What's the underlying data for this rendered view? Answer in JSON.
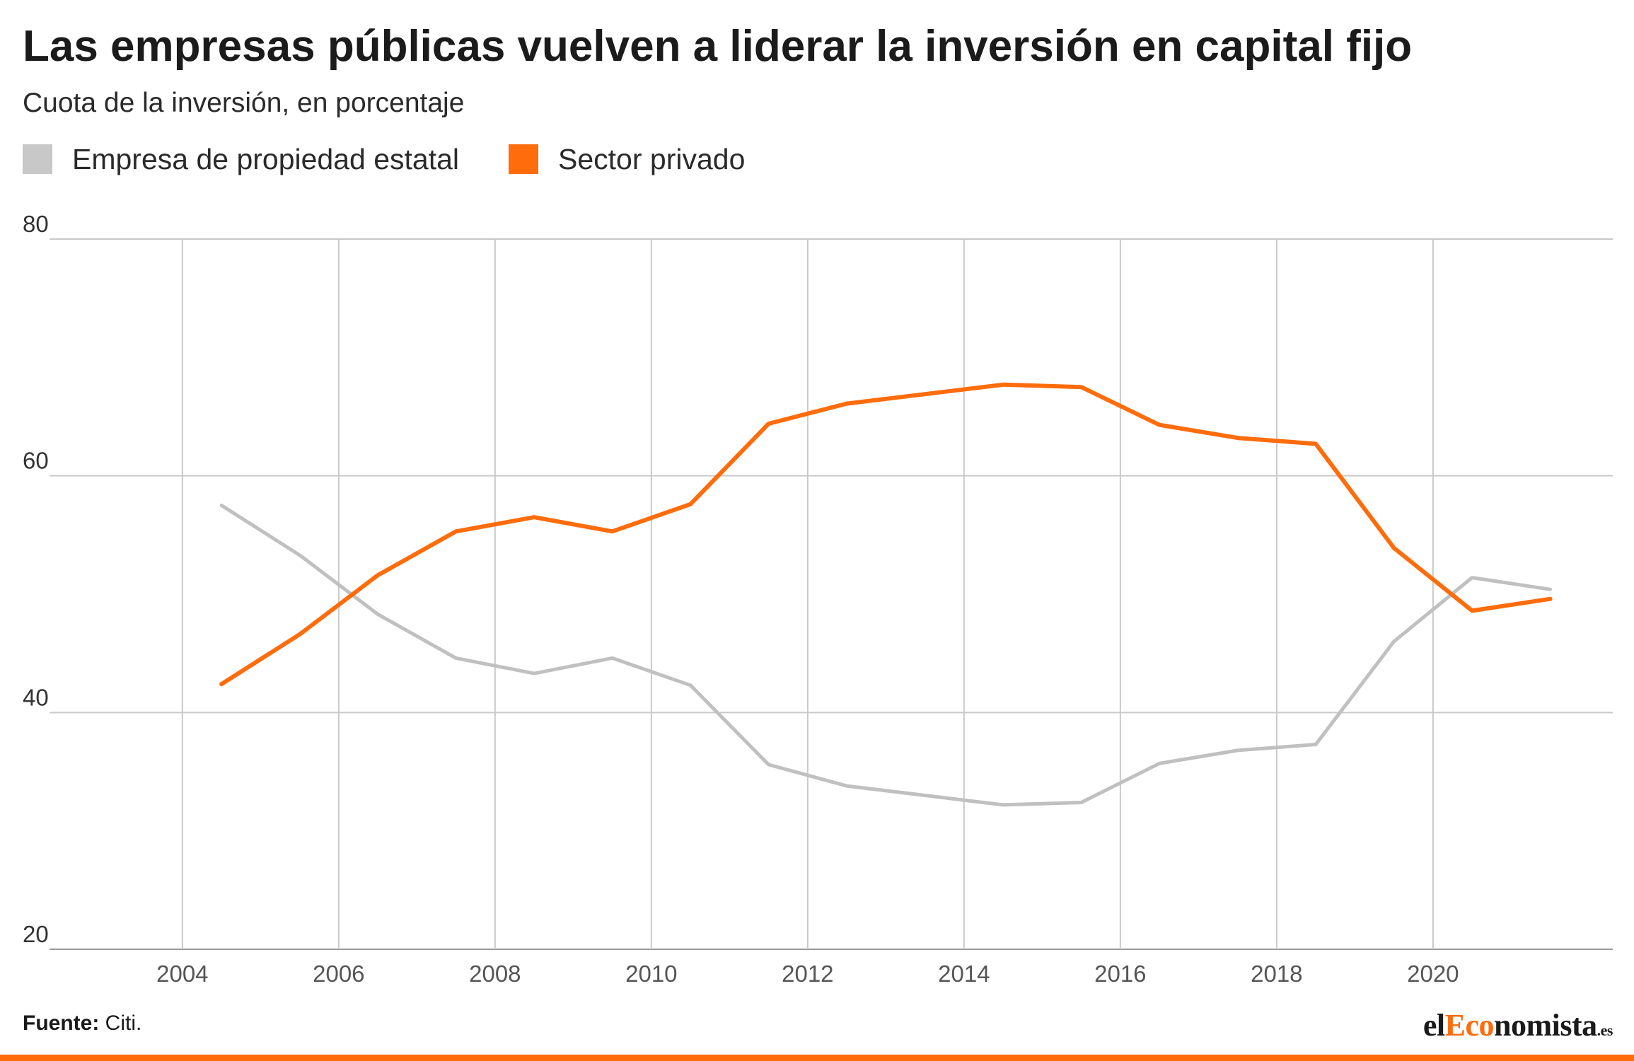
{
  "header": {
    "title": "Las empresas públicas vuelven a liderar la inversión en capital fijo",
    "subtitle": "Cuota de la inversión, en porcentaje"
  },
  "legend": [
    {
      "label": "Empresa de propiedad estatal",
      "color": "#c8c8c8"
    },
    {
      "label": "Sector privado",
      "color": "#ff6c0b"
    }
  ],
  "footer": {
    "source_label": "Fuente:",
    "source_value": "Citi.",
    "logo": {
      "part1": "el",
      "part2": "Eco",
      "part3": "nomista",
      "tld": ".es"
    }
  },
  "chart_data": {
    "type": "line",
    "title": "Las empresas públicas vuelven a liderar la inversión en capital fijo",
    "subtitle": "Cuota de la inversión, en porcentaje",
    "xlabel": "",
    "ylabel": "",
    "ylim": [
      20,
      80
    ],
    "xlim": [
      2002.3,
      2022.3
    ],
    "yticks": [
      20,
      40,
      60,
      80
    ],
    "xticks": [
      2004,
      2006,
      2008,
      2010,
      2012,
      2014,
      2016,
      2018,
      2020
    ],
    "grid": true,
    "legend_position": "top-left",
    "x": [
      2004.5,
      2005.5,
      2006.5,
      2007.5,
      2008.5,
      2009.5,
      2010.5,
      2011.5,
      2012.5,
      2013.5,
      2014.5,
      2015.5,
      2016.5,
      2017.5,
      2018.5,
      2019.5,
      2020.5,
      2021.5
    ],
    "series": [
      {
        "name": "Empresa de propiedad estatal",
        "color": "#c0c0c0",
        "values": [
          57.5,
          53.3,
          48.3,
          44.6,
          43.3,
          44.6,
          42.3,
          35.6,
          33.8,
          33.0,
          32.2,
          32.4,
          35.7,
          36.8,
          37.3,
          46.0,
          51.4,
          50.4
        ]
      },
      {
        "name": "Sector privado",
        "color": "#ff6c0b",
        "values": [
          42.4,
          46.6,
          51.6,
          55.3,
          56.5,
          55.3,
          57.6,
          64.4,
          66.1,
          66.9,
          67.7,
          67.5,
          64.3,
          63.2,
          62.7,
          53.9,
          48.6,
          49.6
        ]
      }
    ]
  }
}
